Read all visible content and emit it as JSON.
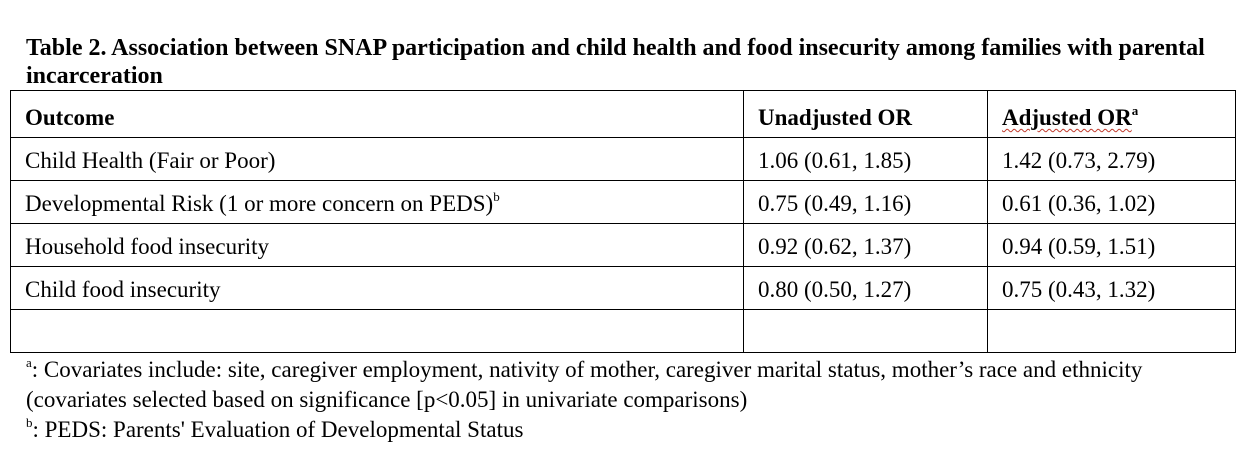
{
  "caption": "Table 2. Association between SNAP participation and child health and food insecurity among families with parental incarceration",
  "table": {
    "headers": {
      "outcome": "Outcome",
      "unadjusted": "Unadjusted OR",
      "adjusted": "Adjusted OR",
      "adjusted_sup": "a"
    },
    "rows": [
      {
        "outcome": "Child Health (Fair or Poor)",
        "sup": "",
        "unadjusted": "1.06 (0.61, 1.85)",
        "adjusted": "1.42 (0.73, 2.79)"
      },
      {
        "outcome": "Developmental Risk (1 or more concern on PEDS)",
        "sup": "b",
        "unadjusted": "0.75 (0.49, 1.16)",
        "adjusted": "0.61 (0.36, 1.02)"
      },
      {
        "outcome": "Household food insecurity",
        "sup": "",
        "unadjusted": "0.92 (0.62, 1.37)",
        "adjusted": "0.94 (0.59, 1.51)"
      },
      {
        "outcome": "Child food insecurity",
        "sup": "",
        "unadjusted": "0.80 (0.50, 1.27)",
        "adjusted": "0.75 (0.43, 1.32)"
      },
      {
        "outcome": "",
        "sup": "",
        "unadjusted": "",
        "adjusted": ""
      }
    ]
  },
  "notes": [
    {
      "mark": "a",
      "text": ": Covariates include: site, caregiver employment, nativity of mother, caregiver marital status, mother’s race and ethnicity (covariates selected based on significance [p<0.05] in univariate comparisons)"
    },
    {
      "mark": "b",
      "text": ":  PEDS: Parents' Evaluation of Developmental Status"
    }
  ]
}
